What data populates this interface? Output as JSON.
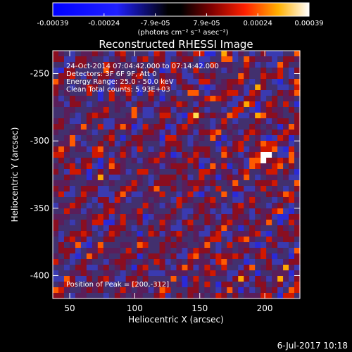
{
  "chart_data": {
    "type": "heatmap",
    "title": "Reconstructed RHESSI Image",
    "xlabel": "Heliocentric X (arcsec)",
    "ylabel": "Heliocentric Y (arcsec)",
    "xlim": [
      37,
      227
    ],
    "ylim": [
      -417,
      -233
    ],
    "x_ticks": [
      "50",
      "100",
      "150",
      "200"
    ],
    "x_tick_values": [
      50,
      100,
      150,
      200
    ],
    "y_ticks": [
      "-250",
      "-300",
      "-350",
      "-400"
    ],
    "y_tick_values": [
      -250,
      -300,
      -350,
      -400
    ],
    "colorbar": {
      "ticks": [
        "-0.00039",
        "-0.00024",
        "-7.9e-05",
        "7.9e-05",
        "0.00024",
        "0.00039"
      ],
      "range": [
        -0.00039,
        0.00039
      ],
      "units_label": "(photons cm⁻² s⁻¹ asec⁻²)"
    },
    "annotations": {
      "time_range": "24-Oct-2014 07:04:42.000 to 07:14:42.000",
      "detectors": "Detectors: 3F 6F 9F, Att 0",
      "energy": "Energy Range: 25.0 - 50.0 keV",
      "clean_counts": "Clean     Total counts: 5.93E+03",
      "peak": "Position of Peak = [200,-312]"
    },
    "peak": {
      "x": 200,
      "y": -312
    },
    "grid": false
  },
  "footer": {
    "date_stamp": "6-Jul-2017 10:18"
  }
}
